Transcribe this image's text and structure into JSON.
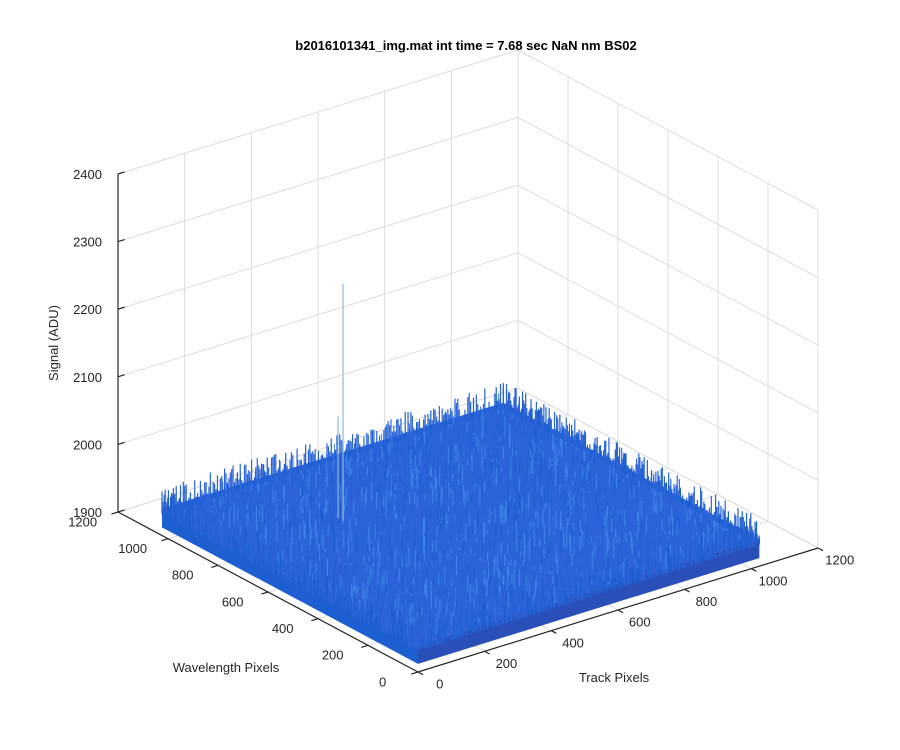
{
  "chart_data": {
    "type": "surface",
    "title": "b2016101341_img.mat int time = 7.68 sec  NaN nm BS02",
    "xlabel": "Track Pixels",
    "ylabel": "Wavelength Pixels",
    "zlabel": "Signal (ADU)",
    "xlim": [
      0,
      1200
    ],
    "ylim": [
      0,
      1200
    ],
    "zlim": [
      1900,
      2400
    ],
    "x_ticks": [
      0,
      200,
      400,
      600,
      800,
      1000,
      1200
    ],
    "y_ticks": [
      0,
      200,
      400,
      600,
      800,
      1000,
      1200
    ],
    "z_ticks": [
      1900,
      2000,
      2100,
      2200,
      2300,
      2400
    ],
    "x_data_range": [
      0,
      1024
    ],
    "y_data_range": [
      0,
      1024
    ],
    "surface_mean": 1940,
    "noise_amplitude": 20,
    "spikes": [
      {
        "x": 300,
        "y": 700,
        "z": 2290
      },
      {
        "x": 300,
        "y": 720,
        "z": 2090
      }
    ],
    "colormap": "parula",
    "surface_colors": [
      "#2b63d8",
      "#1d5fd1",
      "#3f86ea",
      "#2a4fb8"
    ],
    "grid": true,
    "box": "half"
  }
}
